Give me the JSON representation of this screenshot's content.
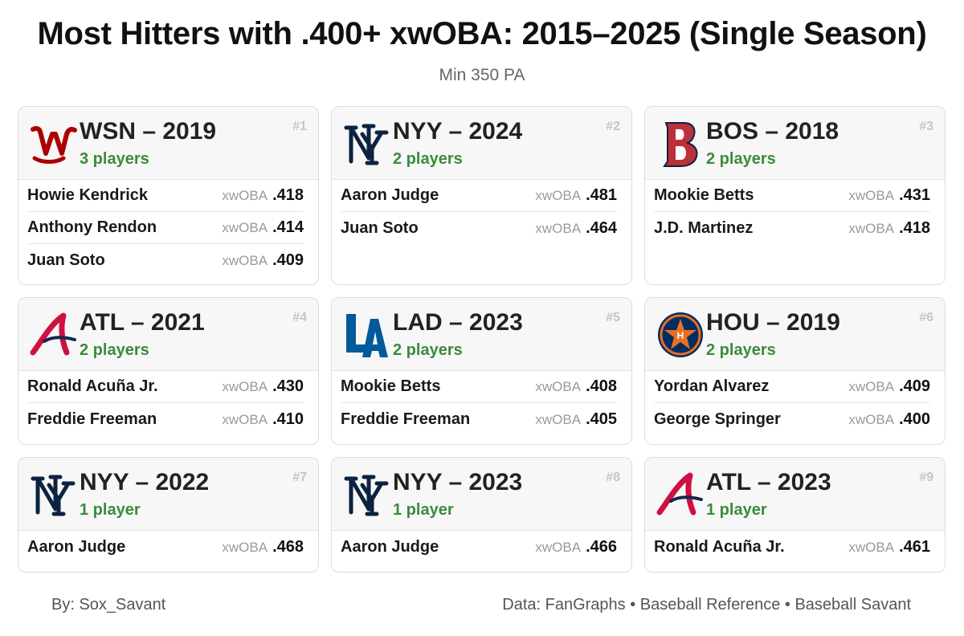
{
  "title": "Most Hitters with .400+ xwOBA: 2015–2025 (Single Season)",
  "subtitle": "Min 350 PA",
  "stat_label": "xwOBA",
  "cards": [
    {
      "rank": "#1",
      "team_title": "WSN – 2019",
      "count": "3 players",
      "logo": "nationals-w-logo",
      "players": [
        {
          "name": "Howie Kendrick",
          "label": "xwOBA",
          "value": ".418"
        },
        {
          "name": "Anthony Rendon",
          "label": "xwOBA",
          "value": ".414"
        },
        {
          "name": "Juan Soto",
          "label": "xwOBA",
          "value": ".409"
        }
      ]
    },
    {
      "rank": "#2",
      "team_title": "NYY – 2024",
      "count": "2 players",
      "logo": "yankees-ny-logo",
      "players": [
        {
          "name": "Aaron Judge",
          "label": "xwOBA",
          "value": ".481"
        },
        {
          "name": "Juan Soto",
          "label": "xwOBA",
          "value": ".464"
        }
      ]
    },
    {
      "rank": "#3",
      "team_title": "BOS – 2018",
      "count": "2 players",
      "logo": "red-sox-b-logo",
      "players": [
        {
          "name": "Mookie Betts",
          "label": "xwOBA",
          "value": ".431"
        },
        {
          "name": "J.D. Martinez",
          "label": "xwOBA",
          "value": ".418"
        }
      ]
    },
    {
      "rank": "#4",
      "team_title": "ATL – 2021",
      "count": "2 players",
      "logo": "braves-a-logo",
      "players": [
        {
          "name": "Ronald Acuña Jr.",
          "label": "xwOBA",
          "value": ".430"
        },
        {
          "name": "Freddie Freeman",
          "label": "xwOBA",
          "value": ".410"
        }
      ]
    },
    {
      "rank": "#5",
      "team_title": "LAD – 2023",
      "count": "2 players",
      "logo": "dodgers-la-logo",
      "players": [
        {
          "name": "Mookie Betts",
          "label": "xwOBA",
          "value": ".408"
        },
        {
          "name": "Freddie Freeman",
          "label": "xwOBA",
          "value": ".405"
        }
      ]
    },
    {
      "rank": "#6",
      "team_title": "HOU – 2019",
      "count": "2 players",
      "logo": "astros-star-logo",
      "players": [
        {
          "name": "Yordan Alvarez",
          "label": "xwOBA",
          "value": ".409"
        },
        {
          "name": "George Springer",
          "label": "xwOBA",
          "value": ".400"
        }
      ]
    },
    {
      "rank": "#7",
      "team_title": "NYY – 2022",
      "count": "1 player",
      "logo": "yankees-ny-logo",
      "players": [
        {
          "name": "Aaron Judge",
          "label": "xwOBA",
          "value": ".468"
        }
      ]
    },
    {
      "rank": "#8",
      "team_title": "NYY – 2023",
      "count": "1 player",
      "logo": "yankees-ny-logo",
      "players": [
        {
          "name": "Aaron Judge",
          "label": "xwOBA",
          "value": ".466"
        }
      ]
    },
    {
      "rank": "#9",
      "team_title": "ATL – 2023",
      "count": "1 player",
      "logo": "braves-a-logo",
      "players": [
        {
          "name": "Ronald Acuña Jr.",
          "label": "xwOBA",
          "value": ".461"
        }
      ]
    }
  ],
  "footer": {
    "author": "By: Sox_Savant",
    "sources": "Data: FanGraphs • Baseball Reference • Baseball Savant"
  },
  "colors": {
    "count_green": "#3d8a3a",
    "nationals_red": "#ab0003",
    "yankees_navy": "#0c2340",
    "red_sox_red": "#bd3039",
    "braves_red": "#ce1141",
    "braves_navy": "#13274f",
    "dodgers_blue": "#005a9c",
    "astros_navy": "#002d62",
    "astros_orange": "#eb6e1f"
  }
}
